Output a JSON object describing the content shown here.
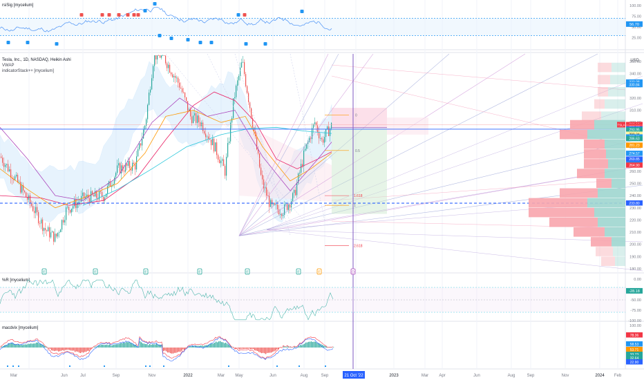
{
  "panes": {
    "rsi": {
      "legend": "rsiSig [mycelium]",
      "scale": [
        "100.00",
        "75.00",
        "50.00",
        "25.00"
      ],
      "value_badge": "56.70",
      "levels": [
        70,
        30
      ]
    },
    "main": {
      "legend": [
        "Tesla, Inc., 1D, NASDAQ, Heikin Ashi",
        "VWAP",
        "indicatorStack++ [mycelium]"
      ],
      "currency": "USD",
      "scale": [
        "350.00",
        "340.00",
        "330.00",
        "320.00",
        "310.00",
        "300.00",
        "290.00",
        "280.00",
        "270.00",
        "260.00",
        "250.00",
        "240.00",
        "230.00",
        "220.00",
        "210.00",
        "200.00",
        "190.00",
        "180.00"
      ],
      "symbol_badge": "TSLA",
      "price_badges": [
        {
          "label": "333.08",
          "color": "#2196f3"
        },
        {
          "label": "330.84",
          "color": "#2196f3"
        },
        {
          "label": "298.19",
          "color": "#f23645"
        },
        {
          "label": "296.94",
          "color": "#f23645"
        },
        {
          "label": "296.07",
          "color": "#f7525f"
        },
        {
          "label": "294.53",
          "color": "#2962ff"
        },
        {
          "label": "293.95",
          "color": "#26a69a"
        },
        {
          "label": "290.24",
          "color": "#fff59d"
        },
        {
          "label": "288.00",
          "color": "#2196f3"
        },
        {
          "label": "286.63",
          "color": "#26a69a"
        },
        {
          "label": "281.23",
          "color": "#ff9800"
        },
        {
          "label": "274.57",
          "color": "#2196f3"
        },
        {
          "label": "269.85",
          "color": "#2962ff"
        },
        {
          "label": "265.63",
          "color": "#2196f3"
        },
        {
          "label": "264.90",
          "color": "#f23645"
        },
        {
          "label": "233.80",
          "color": "#2962ff"
        }
      ],
      "fib_labels": [
        "0",
        "0.5",
        "1.618",
        "1",
        "2.618"
      ],
      "event_markers": [
        "E",
        "E",
        "E",
        "E",
        "E",
        "E",
        "E",
        "D",
        "E"
      ]
    },
    "wr": {
      "legend": "%R [mycelium]",
      "scale": [
        "0.00",
        "-25.00",
        "-50.00",
        "-75.00",
        "-100.00"
      ],
      "value_badge": "-28.18"
    },
    "macd": {
      "legend": "macdvix [mycelium]",
      "scale": [
        "100.00"
      ],
      "value_badges": [
        {
          "label": "78.36",
          "color": "#f23645"
        },
        {
          "label": "58.53",
          "color": "#2196f3"
        },
        {
          "label": "53.71",
          "color": "#ff9800"
        },
        {
          "label": "33.73",
          "color": "#26a69a"
        },
        {
          "label": "32.64",
          "color": "#26a69a"
        },
        {
          "label": "22.90",
          "color": "#2962ff"
        }
      ]
    }
  },
  "time_axis": {
    "labels": [
      "Mar",
      "Jun",
      "Jul",
      "Sep",
      "Nov",
      "2022",
      "Mar",
      "May",
      "Jun",
      "Aug",
      "Sep",
      "2023",
      "Mar",
      "Apr",
      "Jun",
      "Aug",
      "Sep",
      "Nov",
      "2024",
      "Feb"
    ],
    "crosshair_label": "21 Oct '22"
  },
  "colors": {
    "up": "#26a69a",
    "down": "#ef5350",
    "blue": "#2962ff",
    "crosshair": "#7e57c2",
    "grid": "#f0f3fa"
  }
}
